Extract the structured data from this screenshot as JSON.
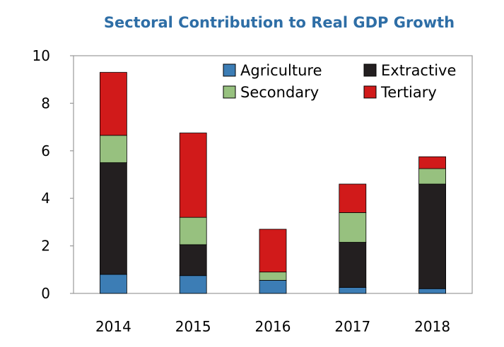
{
  "chart_data": {
    "type": "bar",
    "stacked": true,
    "title": "Sectoral Contribution to Real GDP Growth",
    "xlabel": "",
    "ylabel": "",
    "categories": [
      "2014",
      "2015",
      "2016",
      "2017",
      "2018"
    ],
    "ylim": [
      0,
      10
    ],
    "yticks": [
      0,
      2,
      4,
      6,
      8,
      10
    ],
    "grid": false,
    "legend_position": "top-right",
    "series": [
      {
        "name": "Agriculture",
        "color": "#3c7db5",
        "values": [
          0.8,
          0.75,
          0.55,
          0.25,
          0.2
        ]
      },
      {
        "name": "Extractive",
        "color": "#231f20",
        "values": [
          4.7,
          1.3,
          0.0,
          1.9,
          4.4
        ]
      },
      {
        "name": "Secondary",
        "color": "#97c17f",
        "values": [
          1.15,
          1.15,
          0.35,
          1.25,
          0.65
        ]
      },
      {
        "name": "Tertiary",
        "color": "#d11a1a",
        "values": [
          2.65,
          3.55,
          1.8,
          1.2,
          0.5
        ]
      }
    ]
  }
}
